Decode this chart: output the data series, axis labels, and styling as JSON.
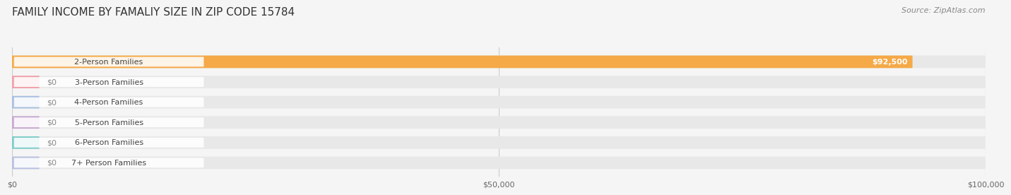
{
  "title": "FAMILY INCOME BY FAMALIY SIZE IN ZIP CODE 15784",
  "source": "Source: ZipAtlas.com",
  "categories": [
    "2-Person Families",
    "3-Person Families",
    "4-Person Families",
    "5-Person Families",
    "6-Person Families",
    "7+ Person Families"
  ],
  "values": [
    92500,
    0,
    0,
    0,
    0,
    0
  ],
  "bar_colors": [
    "#f5a947",
    "#f0a0a8",
    "#a8bfe0",
    "#c8a8d0",
    "#7eccc8",
    "#b8c0e0"
  ],
  "label_colors": [
    "#f5a947",
    "#f0a0a8",
    "#a8bfe0",
    "#c8a8d0",
    "#7eccc8",
    "#b8c0e0"
  ],
  "value_labels": [
    "$92,500",
    "$0",
    "$0",
    "$0",
    "$0",
    "$0"
  ],
  "xlim": [
    0,
    100000
  ],
  "xticks": [
    0,
    50000,
    100000
  ],
  "xtick_labels": [
    "$0",
    "$50,000",
    "$100,000"
  ],
  "background_color": "#f5f5f5",
  "bar_bg_color": "#e8e8e8",
  "title_fontsize": 11,
  "source_fontsize": 8,
  "label_fontsize": 8,
  "value_fontsize": 8
}
